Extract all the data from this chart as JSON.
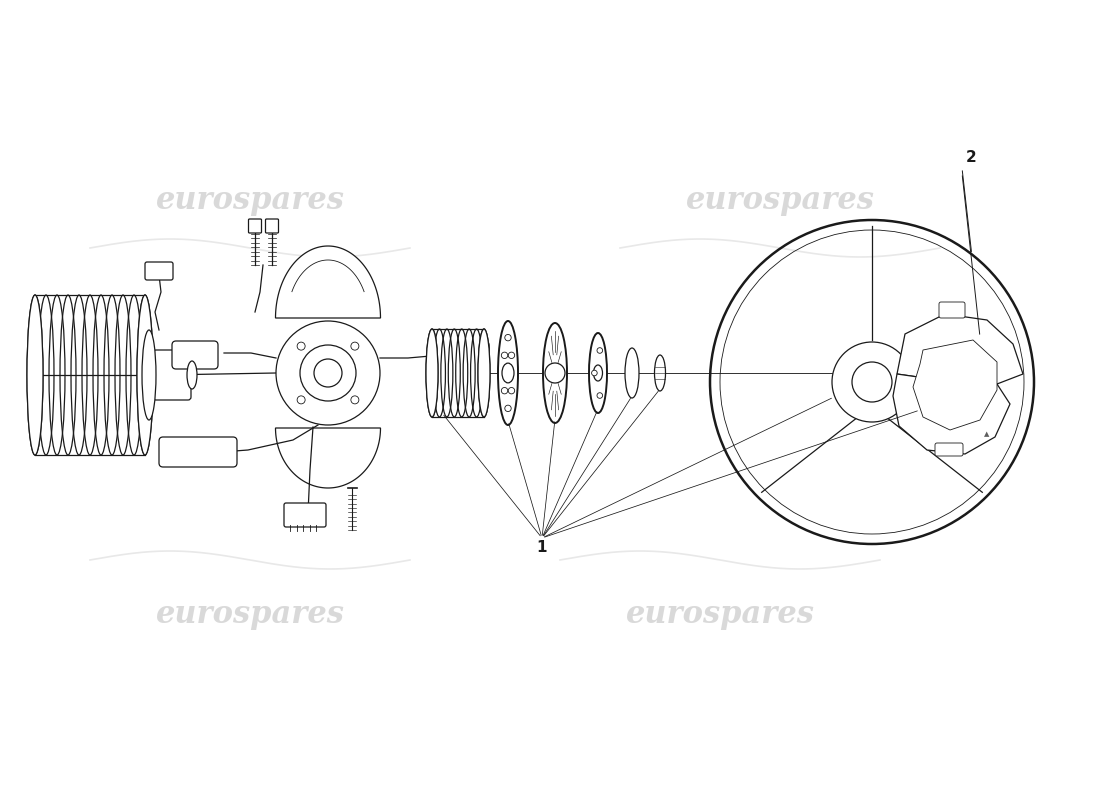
{
  "background_color": "#ffffff",
  "line_color": "#1a1a1a",
  "lw": 0.9,
  "lw_thick": 1.4,
  "lw_thin": 0.6,
  "watermark_color": "#c8c8c8",
  "watermark_alpha": 0.55,
  "label_1": "1",
  "label_2": "2",
  "fig_width": 11.0,
  "fig_height": 8.0,
  "dpi": 100,
  "xlim": [
    0,
    11
  ],
  "ylim": [
    0,
    8
  ]
}
